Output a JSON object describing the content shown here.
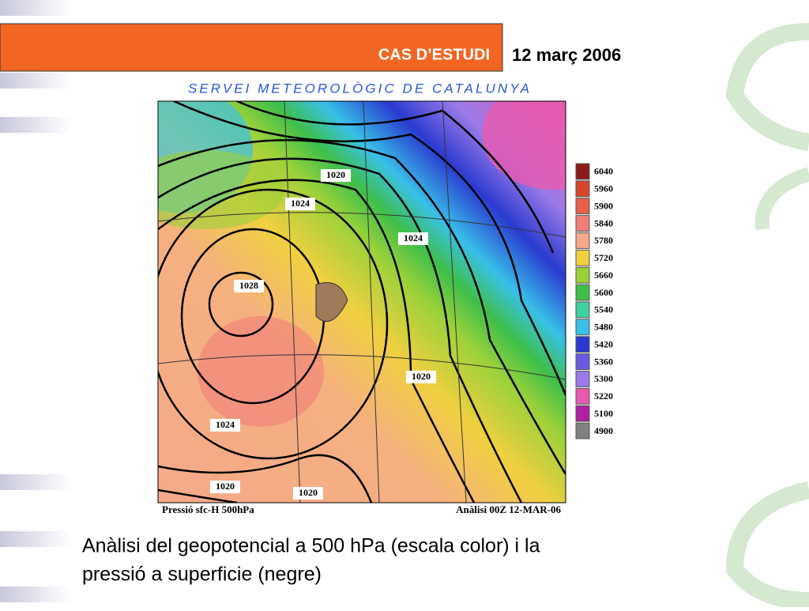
{
  "header": {
    "title": "CAS D’ESTUDI",
    "date": "12 març 2006"
  },
  "map": {
    "source": "SERVEI METEOROLÒGIC DE CATALUNYA",
    "contour_labels": [
      "1020",
      "1024",
      "1024",
      "1028",
      "1020",
      "1024",
      "1020",
      "1020"
    ],
    "footer_left": "Pressió sfc-H 500hPa",
    "footer_right": "Anàlisi 00Z 12-MAR-06",
    "legend": [
      {
        "label": "6040",
        "color": "#8b1a1a"
      },
      {
        "label": "5960",
        "color": "#d9452b"
      },
      {
        "label": "5900",
        "color": "#e8604a"
      },
      {
        "label": "5840",
        "color": "#f07f79"
      },
      {
        "label": "5780",
        "color": "#f5a98a"
      },
      {
        "label": "5720",
        "color": "#f0d040"
      },
      {
        "label": "5660",
        "color": "#9ad13a"
      },
      {
        "label": "5600",
        "color": "#3ebf4a"
      },
      {
        "label": "5540",
        "color": "#3ed0a0"
      },
      {
        "label": "5480",
        "color": "#38c0e8"
      },
      {
        "label": "5420",
        "color": "#2a3ad0"
      },
      {
        "label": "5360",
        "color": "#6a5ae0"
      },
      {
        "label": "5300",
        "color": "#9a7ae8"
      },
      {
        "label": "5220",
        "color": "#e85ab0"
      },
      {
        "label": "5100",
        "color": "#b020a0"
      },
      {
        "label": "4900",
        "color": "#808080"
      }
    ]
  },
  "caption": [
    "Anàlisi del geopotencial a 500 hPa (escala color) i la",
    "pressió a superficie (negre)"
  ]
}
